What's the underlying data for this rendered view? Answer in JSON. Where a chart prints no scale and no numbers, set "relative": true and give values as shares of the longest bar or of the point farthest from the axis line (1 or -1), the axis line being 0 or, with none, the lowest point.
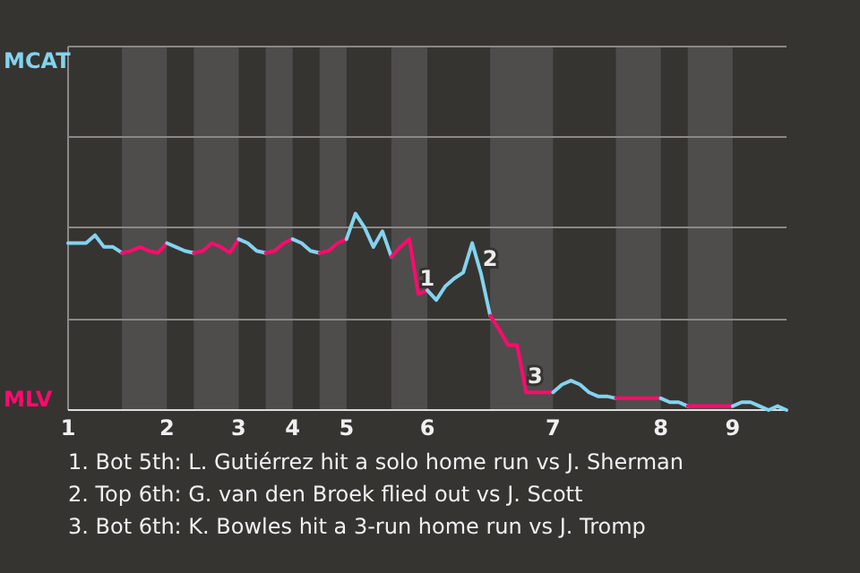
{
  "chart_data": {
    "type": "line",
    "relative": true,
    "categories": [
      "1",
      null,
      null,
      null,
      null,
      null,
      null,
      null,
      null,
      null,
      null,
      "2",
      null,
      null,
      null,
      null,
      null,
      null,
      null,
      "3",
      null,
      null,
      null,
      null,
      null,
      "4",
      null,
      null,
      null,
      null,
      null,
      "5",
      null,
      null,
      null,
      null,
      null,
      null,
      null,
      null,
      "6",
      null,
      null,
      null,
      null,
      null,
      null,
      null,
      null,
      null,
      null,
      null,
      null,
      null,
      "7",
      null,
      null,
      null,
      null,
      null,
      null,
      null,
      null,
      null,
      null,
      null,
      "8",
      null,
      null,
      null,
      null,
      null,
      null,
      null,
      "9",
      null,
      null,
      null,
      null,
      null,
      null
    ],
    "series": [
      {
        "name": "MCAT",
        "color": "#83d3f0",
        "values": [
          0.85,
          0.85,
          0.85,
          0.89,
          0.83,
          0.83,
          0.8,
          null,
          null,
          null,
          null,
          null,
          null,
          null,
          null,
          null,
          null,
          null,
          null,
          null,
          null,
          null,
          null,
          null,
          null,
          null,
          null,
          null,
          null,
          null,
          null,
          null,
          null,
          null,
          null,
          null,
          null,
          null,
          null,
          null,
          null,
          null,
          null,
          null,
          null,
          null,
          null,
          null,
          null,
          null,
          null,
          null,
          null,
          null,
          null,
          null,
          null,
          null,
          null,
          null,
          null,
          null,
          null,
          null,
          null,
          null,
          null,
          null,
          null,
          null,
          null,
          null,
          null,
          null,
          null,
          null,
          null,
          null,
          null,
          null,
          null
        ]
      },
      {
        "name": "MLV",
        "color": "#ff0a6e",
        "values": [
          null,
          null,
          null,
          null,
          null,
          null,
          0.8,
          0.81,
          0.83,
          0.81,
          0.8,
          0.85,
          null,
          null,
          null,
          null,
          null,
          null,
          null,
          null,
          null,
          null,
          null,
          null,
          null,
          null,
          null,
          null,
          null,
          null,
          null,
          null,
          null,
          null,
          null,
          null,
          null,
          null,
          null,
          null,
          null,
          null,
          null,
          null,
          null,
          null,
          null,
          null,
          null,
          null,
          null,
          null,
          null,
          null,
          null,
          null,
          null,
          null,
          null,
          null,
          null,
          null,
          null,
          null,
          null,
          null,
          null,
          null,
          null,
          null,
          null,
          null,
          null,
          null,
          null,
          null,
          null,
          null,
          null,
          null,
          null
        ]
      },
      {
        "color": "#83d3f0",
        "values": [
          null,
          null,
          null,
          null,
          null,
          null,
          null,
          null,
          null,
          null,
          null,
          0.85,
          0.83,
          0.81,
          0.8,
          null,
          null,
          null,
          null,
          null,
          null,
          null,
          null,
          null,
          null,
          null,
          null,
          null,
          null,
          null,
          null,
          null,
          null,
          null,
          null,
          null,
          null,
          null,
          null,
          null,
          null,
          null,
          null,
          null,
          null,
          null,
          null,
          null,
          null,
          null,
          null,
          null,
          null,
          null,
          null,
          null,
          null,
          null,
          null,
          null,
          null,
          null,
          null,
          null,
          null,
          null,
          null,
          null,
          null,
          null,
          null,
          null,
          null,
          null,
          null,
          null,
          null,
          null,
          null,
          null,
          null
        ]
      },
      {
        "color": "#ff0a6e",
        "values": [
          null,
          null,
          null,
          null,
          null,
          null,
          null,
          null,
          null,
          null,
          null,
          null,
          null,
          null,
          0.8,
          0.81,
          0.85,
          0.83,
          0.8,
          0.87,
          null,
          null,
          null,
          null,
          null,
          null,
          null,
          null,
          null,
          null,
          null,
          null,
          null,
          null,
          null,
          null,
          null,
          null,
          null,
          null,
          null,
          null,
          null,
          null,
          null,
          null,
          null,
          null,
          null,
          null,
          null,
          null,
          null,
          null,
          null,
          null,
          null,
          null,
          null,
          null,
          null,
          null,
          null,
          null,
          null,
          null,
          null,
          null,
          null,
          null,
          null,
          null,
          null,
          null,
          null,
          null,
          null,
          null,
          null,
          null,
          null
        ]
      },
      {
        "color": "#83d3f0",
        "values": [
          null,
          null,
          null,
          null,
          null,
          null,
          null,
          null,
          null,
          null,
          null,
          null,
          null,
          null,
          null,
          null,
          null,
          null,
          null,
          0.87,
          0.85,
          0.81,
          0.8,
          null,
          null,
          null,
          null,
          null,
          null,
          null,
          null,
          null,
          null,
          null,
          null,
          null,
          null,
          null,
          null,
          null,
          null,
          null,
          null,
          null,
          null,
          null,
          null,
          null,
          null,
          null,
          null,
          null,
          null,
          null,
          null,
          null,
          null,
          null,
          null,
          null,
          null,
          null,
          null,
          null,
          null,
          null,
          null,
          null,
          null,
          null,
          null,
          null,
          null,
          null,
          null,
          null,
          null,
          null,
          null,
          null,
          null
        ]
      },
      {
        "color": "#ff0a6e",
        "values": [
          null,
          null,
          null,
          null,
          null,
          null,
          null,
          null,
          null,
          null,
          null,
          null,
          null,
          null,
          null,
          null,
          null,
          null,
          null,
          null,
          null,
          null,
          0.8,
          0.81,
          0.85,
          0.87,
          null,
          null,
          null,
          null,
          null,
          null,
          null,
          null,
          null,
          null,
          null,
          null,
          null,
          null,
          null,
          null,
          null,
          null,
          null,
          null,
          null,
          null,
          null,
          null,
          null,
          null,
          null,
          null,
          null,
          null,
          null,
          null,
          null,
          null,
          null,
          null,
          null,
          null,
          null,
          null,
          null,
          null,
          null,
          null,
          null,
          null,
          null,
          null,
          null,
          null,
          null,
          null,
          null,
          null,
          null
        ]
      },
      {
        "color": "#83d3f0",
        "values": [
          null,
          null,
          null,
          null,
          null,
          null,
          null,
          null,
          null,
          null,
          null,
          null,
          null,
          null,
          null,
          null,
          null,
          null,
          null,
          null,
          null,
          null,
          null,
          null,
          null,
          0.87,
          0.85,
          0.81,
          0.8,
          null,
          null,
          null,
          null,
          null,
          null,
          null,
          null,
          null,
          null,
          null,
          null,
          null,
          null,
          null,
          null,
          null,
          null,
          null,
          null,
          null,
          null,
          null,
          null,
          null,
          null,
          null,
          null,
          null,
          null,
          null,
          null,
          null,
          null,
          null,
          null,
          null,
          null,
          null,
          null,
          null,
          null,
          null,
          null,
          null,
          null,
          null,
          null,
          null,
          null,
          null,
          null
        ]
      },
      {
        "color": "#ff0a6e",
        "values": [
          null,
          null,
          null,
          null,
          null,
          null,
          null,
          null,
          null,
          null,
          null,
          null,
          null,
          null,
          null,
          null,
          null,
          null,
          null,
          null,
          null,
          null,
          null,
          null,
          null,
          null,
          null,
          null,
          0.8,
          0.81,
          0.85,
          0.87,
          null,
          null,
          null,
          null,
          null,
          null,
          null,
          null,
          null,
          null,
          null,
          null,
          null,
          null,
          null,
          null,
          null,
          null,
          null,
          null,
          null,
          null,
          null,
          null,
          null,
          null,
          null,
          null,
          null,
          null,
          null,
          null,
          null,
          null,
          null,
          null,
          null,
          null,
          null,
          null,
          null,
          null,
          null,
          null,
          null,
          null,
          null,
          null,
          null
        ]
      },
      {
        "color": "#83d3f0",
        "values": [
          null,
          null,
          null,
          null,
          null,
          null,
          null,
          null,
          null,
          null,
          null,
          null,
          null,
          null,
          null,
          null,
          null,
          null,
          null,
          null,
          null,
          null,
          null,
          null,
          null,
          null,
          null,
          null,
          null,
          null,
          null,
          0.87,
          1,
          0.93,
          0.83,
          0.91,
          0.78,
          null,
          null,
          null,
          null,
          null,
          null,
          null,
          null,
          null,
          null,
          null,
          null,
          null,
          null,
          null,
          null,
          null,
          null,
          null,
          null,
          null,
          null,
          null,
          null,
          null,
          null,
          null,
          null,
          null,
          null,
          null,
          null,
          null,
          null,
          null,
          null,
          null,
          null,
          null,
          null,
          null,
          null,
          null,
          null
        ]
      },
      {
        "color": "#ff0a6e",
        "values": [
          null,
          null,
          null,
          null,
          null,
          null,
          null,
          null,
          null,
          null,
          null,
          null,
          null,
          null,
          null,
          null,
          null,
          null,
          null,
          null,
          null,
          null,
          null,
          null,
          null,
          null,
          null,
          null,
          null,
          null,
          null,
          null,
          null,
          null,
          null,
          null,
          0.78,
          0.83,
          0.87,
          0.59,
          0.61,
          null,
          null,
          null,
          null,
          null,
          null,
          null,
          null,
          null,
          null,
          null,
          null,
          null,
          null,
          null,
          null,
          null,
          null,
          null,
          null,
          null,
          null,
          null,
          null,
          null,
          null,
          null,
          null,
          null,
          null,
          null,
          null,
          null,
          null,
          null,
          null,
          null,
          null,
          null,
          null
        ]
      },
      {
        "color": "#83d3f0",
        "values": [
          null,
          null,
          null,
          null,
          null,
          null,
          null,
          null,
          null,
          null,
          null,
          null,
          null,
          null,
          null,
          null,
          null,
          null,
          null,
          null,
          null,
          null,
          null,
          null,
          null,
          null,
          null,
          null,
          null,
          null,
          null,
          null,
          null,
          null,
          null,
          null,
          null,
          null,
          null,
          null,
          0.61,
          0.56,
          0.63,
          0.67,
          0.7,
          0.85,
          0.69,
          0.48,
          null,
          null,
          null,
          null,
          null,
          null,
          null,
          null,
          null,
          null,
          null,
          null,
          null,
          null,
          null,
          null,
          null,
          null,
          null,
          null,
          null,
          null,
          null,
          null,
          null,
          null,
          null,
          null,
          null,
          null,
          null,
          null,
          null
        ]
      },
      {
        "color": "#ff0a6e",
        "values": [
          null,
          null,
          null,
          null,
          null,
          null,
          null,
          null,
          null,
          null,
          null,
          null,
          null,
          null,
          null,
          null,
          null,
          null,
          null,
          null,
          null,
          null,
          null,
          null,
          null,
          null,
          null,
          null,
          null,
          null,
          null,
          null,
          null,
          null,
          null,
          null,
          null,
          null,
          null,
          null,
          null,
          null,
          null,
          null,
          null,
          null,
          null,
          0.48,
          0.41,
          0.33,
          0.33,
          0.09,
          0.09,
          0.09,
          0.09,
          null,
          null,
          null,
          null,
          null,
          null,
          null,
          null,
          null,
          null,
          null,
          null,
          null,
          null,
          null,
          null,
          null,
          null,
          null,
          null,
          null,
          null,
          null,
          null,
          null,
          null
        ]
      },
      {
        "color": "#83d3f0",
        "values": [
          null,
          null,
          null,
          null,
          null,
          null,
          null,
          null,
          null,
          null,
          null,
          null,
          null,
          null,
          null,
          null,
          null,
          null,
          null,
          null,
          null,
          null,
          null,
          null,
          null,
          null,
          null,
          null,
          null,
          null,
          null,
          null,
          null,
          null,
          null,
          null,
          null,
          null,
          null,
          null,
          null,
          null,
          null,
          null,
          null,
          null,
          null,
          null,
          null,
          null,
          null,
          null,
          null,
          null,
          0.09,
          0.13,
          0.15,
          0.13,
          0.09,
          0.07,
          0.07,
          0.06,
          null,
          null,
          null,
          null,
          null,
          null,
          null,
          null,
          null,
          null,
          null,
          null,
          null,
          null,
          null,
          null,
          null,
          null,
          null
        ]
      },
      {
        "color": "#ff0a6e",
        "values": [
          null,
          null,
          null,
          null,
          null,
          null,
          null,
          null,
          null,
          null,
          null,
          null,
          null,
          null,
          null,
          null,
          null,
          null,
          null,
          null,
          null,
          null,
          null,
          null,
          null,
          null,
          null,
          null,
          null,
          null,
          null,
          null,
          null,
          null,
          null,
          null,
          null,
          null,
          null,
          null,
          null,
          null,
          null,
          null,
          null,
          null,
          null,
          null,
          null,
          null,
          null,
          null,
          null,
          null,
          null,
          null,
          null,
          null,
          null,
          null,
          null,
          0.06,
          0.06,
          0.06,
          0.06,
          0.06,
          0.06,
          null,
          null,
          null,
          null,
          null,
          null,
          null,
          null,
          null,
          null,
          null,
          null,
          null,
          null
        ]
      },
      {
        "color": "#83d3f0",
        "values": [
          null,
          null,
          null,
          null,
          null,
          null,
          null,
          null,
          null,
          null,
          null,
          null,
          null,
          null,
          null,
          null,
          null,
          null,
          null,
          null,
          null,
          null,
          null,
          null,
          null,
          null,
          null,
          null,
          null,
          null,
          null,
          null,
          null,
          null,
          null,
          null,
          null,
          null,
          null,
          null,
          null,
          null,
          null,
          null,
          null,
          null,
          null,
          null,
          null,
          null,
          null,
          null,
          null,
          null,
          null,
          null,
          null,
          null,
          null,
          null,
          null,
          null,
          null,
          null,
          null,
          null,
          0.06,
          0.04,
          0.04,
          0.02,
          null,
          null,
          null,
          null,
          null,
          null,
          null,
          null,
          null,
          null,
          null
        ]
      },
      {
        "color": "#ff0a6e",
        "values": [
          null,
          null,
          null,
          null,
          null,
          null,
          null,
          null,
          null,
          null,
          null,
          null,
          null,
          null,
          null,
          null,
          null,
          null,
          null,
          null,
          null,
          null,
          null,
          null,
          null,
          null,
          null,
          null,
          null,
          null,
          null,
          null,
          null,
          null,
          null,
          null,
          null,
          null,
          null,
          null,
          null,
          null,
          null,
          null,
          null,
          null,
          null,
          null,
          null,
          null,
          null,
          null,
          null,
          null,
          null,
          null,
          null,
          null,
          null,
          null,
          null,
          null,
          null,
          null,
          null,
          null,
          null,
          null,
          null,
          0.02,
          0.02,
          0.02,
          0.02,
          0.02,
          0.02,
          null,
          null,
          null,
          null,
          null,
          null
        ]
      },
      {
        "color": "#83d3f0",
        "values": [
          null,
          null,
          null,
          null,
          null,
          null,
          null,
          null,
          null,
          null,
          null,
          null,
          null,
          null,
          null,
          null,
          null,
          null,
          null,
          null,
          null,
          null,
          null,
          null,
          null,
          null,
          null,
          null,
          null,
          null,
          null,
          null,
          null,
          null,
          null,
          null,
          null,
          null,
          null,
          null,
          null,
          null,
          null,
          null,
          null,
          null,
          null,
          null,
          null,
          null,
          null,
          null,
          null,
          null,
          null,
          null,
          null,
          null,
          null,
          null,
          null,
          null,
          null,
          null,
          null,
          null,
          null,
          null,
          null,
          null,
          null,
          null,
          null,
          null,
          0.02,
          0.04,
          0.04,
          0.02,
          0,
          0.02,
          0
        ]
      }
    ],
    "ref_lines": [
      {
        "axis": "y",
        "value": 0.46,
        "color": "#8a8987"
      },
      {
        "axis": "y",
        "value": 0.93,
        "color": "#8a8987"
      },
      {
        "axis": "y",
        "value": 1.39,
        "color": "#8a8987"
      }
    ],
    "marker": "none",
    "annotations": [
      {
        "text": "1",
        "y": 0.59
      },
      {
        "text": "2",
        "y": 0.69
      },
      {
        "text": "3",
        "y": 0.09
      },
      "1. Bot 5th: L. Gutiérrez hit a solo home run vs J. Sherman",
      "2. Top 6th: G. van den Broek flied out vs J. Scott",
      "3. Bot 6th: K. Bowles hit a 3-run home run vs J. Tromp"
    ]
  }
}
